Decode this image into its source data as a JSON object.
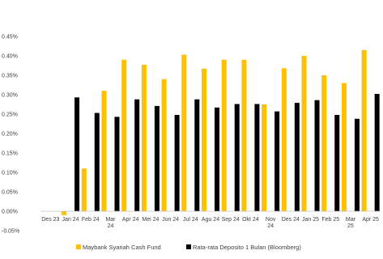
{
  "chart_data": {
    "type": "bar",
    "categories": [
      "Des 23",
      "Jan 24",
      "Feb 24",
      "Mar 24",
      "Apr 24",
      "Mei 24",
      "Jun 24",
      "Jul 24",
      "Agu 24",
      "Sep 24",
      "Okt 24",
      "Nov 24",
      "Des 24",
      "Jan 25",
      "Feb 25",
      "Mar 25",
      "Apr 25"
    ],
    "series": [
      {
        "name": "Maybank Syariah Cash Fund",
        "color": "#FFC000",
        "values": [
          0.0,
          -0.01,
          0.11,
          0.31,
          0.39,
          0.377,
          0.34,
          0.403,
          0.367,
          0.39,
          0.39,
          0.275,
          0.368,
          0.4,
          0.35,
          0.33,
          0.415
        ]
      },
      {
        "name": "Rata-rata Deposito 1 Bulan (Bloomberg)",
        "color": "#000000",
        "values": [
          0.0,
          0.293,
          0.253,
          0.243,
          0.288,
          0.271,
          0.248,
          0.288,
          0.267,
          0.276,
          0.276,
          0.257,
          0.279,
          0.286,
          0.248,
          0.238,
          0.302
        ]
      }
    ],
    "yticks": [
      "0.45%",
      "0.40%",
      "0.35%",
      "0.30%",
      "0.25%",
      "0.20%",
      "0.15%",
      "0.10%",
      "0.05%",
      "0.00%",
      "-0.05%"
    ],
    "ylim": [
      -0.05,
      0.45
    ],
    "legend_position": "bottom",
    "grid": false
  }
}
